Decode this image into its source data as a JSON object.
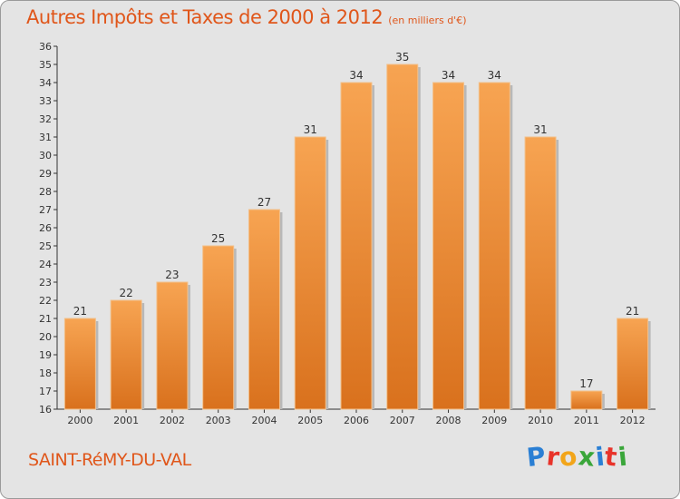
{
  "title": "Autres Impôts et Taxes de 2000 à 2012",
  "unit_label": "(en milliers d'€)",
  "commune": "SAINT-RéMY-DU-VAL",
  "logo_letters": [
    {
      "ch": "P",
      "color": "#2a7fd4"
    },
    {
      "ch": "r",
      "color": "#e8332a"
    },
    {
      "ch": "o",
      "color": "#f2a51a"
    },
    {
      "ch": "x",
      "color": "#3aa63a"
    },
    {
      "ch": "i",
      "color": "#2a7fd4"
    },
    {
      "ch": "t",
      "color": "#e8332a"
    },
    {
      "ch": "i",
      "color": "#3aa63a"
    }
  ],
  "colors": {
    "bar_light": "#f7a452",
    "bar_dark": "#d9711d",
    "accent": "#e0561a"
  },
  "chart_data": {
    "type": "bar",
    "categories": [
      "2000",
      "2001",
      "2002",
      "2003",
      "2004",
      "2005",
      "2006",
      "2007",
      "2008",
      "2009",
      "2010",
      "2011",
      "2012"
    ],
    "values": [
      21,
      22,
      23,
      25,
      27,
      31,
      34,
      35,
      34,
      34,
      31,
      17,
      21
    ],
    "ylim": [
      16,
      36
    ],
    "yticks": [
      16,
      17,
      18,
      19,
      20,
      21,
      22,
      23,
      24,
      25,
      26,
      27,
      28,
      29,
      30,
      31,
      32,
      33,
      34,
      35,
      36
    ],
    "grid": false,
    "xlabel": "",
    "ylabel": ""
  }
}
